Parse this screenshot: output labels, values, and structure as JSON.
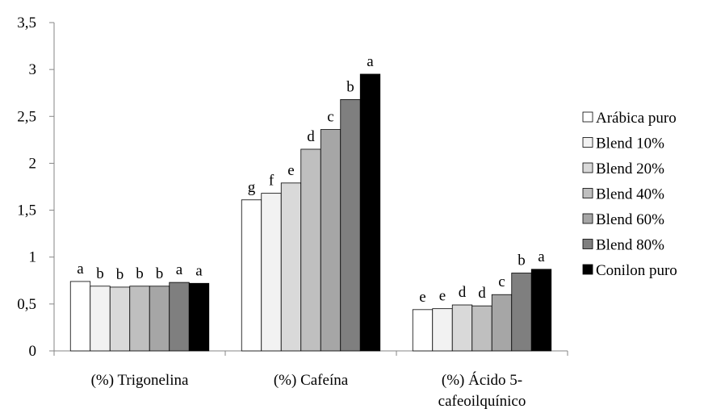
{
  "chart_data": {
    "type": "bar",
    "categories": [
      [
        "(%) Trigonelina"
      ],
      [
        "(%) Cafeína"
      ],
      [
        "(%) Ácido 5-",
        "cafeoilquínico"
      ]
    ],
    "ylim": [
      0,
      3.5
    ],
    "yticks": [
      "0",
      "0,5",
      "1",
      "1,5",
      "2",
      "2,5",
      "3",
      "3,5"
    ],
    "ytick_values": [
      0,
      0.5,
      1,
      1.5,
      2,
      2.5,
      3,
      3.5
    ],
    "grid": false,
    "legend_position": "right",
    "series": [
      {
        "name": "Arábica puro",
        "color": "#ffffff",
        "values": [
          0.74,
          1.61,
          0.44
        ],
        "labels": [
          "a",
          "g",
          "e"
        ]
      },
      {
        "name": "Blend 10%",
        "color": "#f2f2f2",
        "values": [
          0.69,
          1.68,
          0.45
        ],
        "labels": [
          "b",
          "f",
          "e"
        ]
      },
      {
        "name": "Blend 20%",
        "color": "#d9d9d9",
        "values": [
          0.68,
          1.79,
          0.49
        ],
        "labels": [
          "b",
          "e",
          "d"
        ]
      },
      {
        "name": "Blend 40%",
        "color": "#bfbfbf",
        "values": [
          0.69,
          2.15,
          0.48
        ],
        "labels": [
          "b",
          "d",
          "d"
        ]
      },
      {
        "name": "Blend 60%",
        "color": "#a6a6a6",
        "values": [
          0.69,
          2.36,
          0.6
        ],
        "labels": [
          "b",
          "c",
          "c"
        ]
      },
      {
        "name": "Blend 80%",
        "color": "#7f7f7f",
        "values": [
          0.73,
          2.68,
          0.83
        ],
        "labels": [
          "a",
          "b",
          "b"
        ]
      },
      {
        "name": "Conilon puro",
        "color": "#000000",
        "values": [
          0.72,
          2.95,
          0.87
        ],
        "labels": [
          "a",
          "a",
          "a"
        ]
      }
    ]
  }
}
